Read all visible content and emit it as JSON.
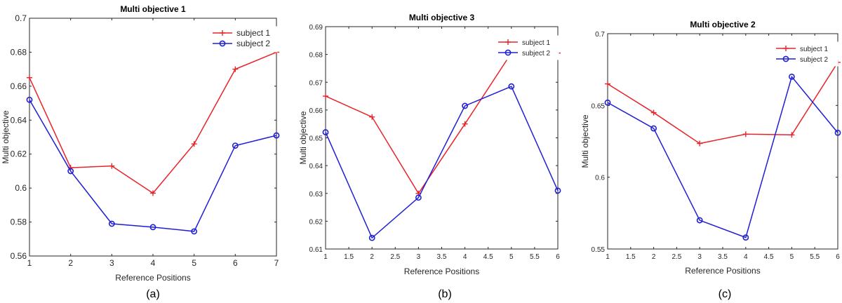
{
  "colors": {
    "subject1": "#e8232a",
    "subject2": "#1f1fd4",
    "axis": "#262626"
  },
  "chart_data": [
    {
      "type": "line",
      "title": "Multi objective 1",
      "xlabel": "Reference Positions",
      "ylabel": "Multi objective",
      "caption": "(a)",
      "xlim": [
        1,
        7
      ],
      "ylim": [
        0.56,
        0.7
      ],
      "x_ticks": [
        1,
        2,
        3,
        4,
        5,
        6,
        7
      ],
      "x_tick_labels": [
        "1",
        "2",
        "3",
        "4",
        "5",
        "6",
        "7"
      ],
      "y_ticks": [
        0.56,
        0.58,
        0.6,
        0.62,
        0.64,
        0.66,
        0.68,
        0.7
      ],
      "y_tick_labels": [
        "0.56",
        "0.58",
        "0.6",
        "0.62",
        "0.64",
        "0.66",
        "0.68",
        "0.7"
      ],
      "legend_position": "top-right",
      "grid": false,
      "x": [
        1,
        2,
        3,
        4,
        5,
        6,
        7
      ],
      "series": [
        {
          "name": "subject 1",
          "marker": "plus",
          "values": [
            0.665,
            0.612,
            0.613,
            0.597,
            0.626,
            0.67,
            0.68
          ]
        },
        {
          "name": "subject 2",
          "marker": "circle",
          "values": [
            0.652,
            0.61,
            0.579,
            0.577,
            0.5745,
            0.625,
            0.631
          ]
        }
      ]
    },
    {
      "type": "line",
      "title": "Multi objective 3",
      "xlabel": "Reference Positions",
      "ylabel": "Multi objective",
      "caption": "(b)",
      "xlim": [
        1,
        6
      ],
      "ylim": [
        0.61,
        0.69
      ],
      "x_ticks": [
        1,
        1.5,
        2,
        2.5,
        3,
        3.5,
        4,
        4.5,
        5,
        5.5,
        6
      ],
      "x_tick_labels": [
        "1",
        "1.5",
        "2",
        "2.5",
        "3",
        "3.5",
        "4",
        "4.5",
        "5",
        "5.5",
        "6"
      ],
      "y_ticks": [
        0.61,
        0.62,
        0.63,
        0.64,
        0.65,
        0.66,
        0.67,
        0.68,
        0.69
      ],
      "y_tick_labels": [
        "0.61",
        "0.62",
        "0.63",
        "0.64",
        "0.65",
        "0.66",
        "0.67",
        "0.68",
        "0.69"
      ],
      "legend_position": "top-right",
      "grid": false,
      "x": [
        1,
        2,
        3,
        4,
        5,
        6
      ],
      "series": [
        {
          "name": "subject 1",
          "marker": "plus",
          "values": [
            0.665,
            0.6575,
            0.63,
            0.655,
            0.6805,
            0.6805
          ]
        },
        {
          "name": "subject 2",
          "marker": "circle",
          "values": [
            0.652,
            0.614,
            0.6285,
            0.6615,
            0.6685,
            0.631
          ]
        }
      ]
    },
    {
      "type": "line",
      "title": "Multi objective 2",
      "xlabel": "Reference Positions",
      "ylabel": "Multi objective",
      "caption": "(c)",
      "xlim": [
        1,
        6
      ],
      "ylim": [
        0.55,
        0.7
      ],
      "x_ticks": [
        1,
        1.5,
        2,
        2.5,
        3,
        3.5,
        4,
        4.5,
        5,
        5.5,
        6
      ],
      "x_tick_labels": [
        "1",
        "1.5",
        "2",
        "2.5",
        "3",
        "3.5",
        "4",
        "4.5",
        "5",
        "5.5",
        "6"
      ],
      "y_ticks": [
        0.55,
        0.6,
        0.65,
        0.7
      ],
      "y_tick_labels": [
        "0.55",
        "0.6",
        "0.65",
        "0.7"
      ],
      "legend_position": "top-right",
      "grid": false,
      "x": [
        1,
        2,
        3,
        4,
        5,
        6
      ],
      "series": [
        {
          "name": "subject 1",
          "marker": "plus",
          "values": [
            0.665,
            0.645,
            0.6235,
            0.63,
            0.6295,
            0.68
          ]
        },
        {
          "name": "subject 2",
          "marker": "circle",
          "values": [
            0.652,
            0.634,
            0.57,
            0.558,
            0.67,
            0.631
          ]
        }
      ]
    }
  ]
}
